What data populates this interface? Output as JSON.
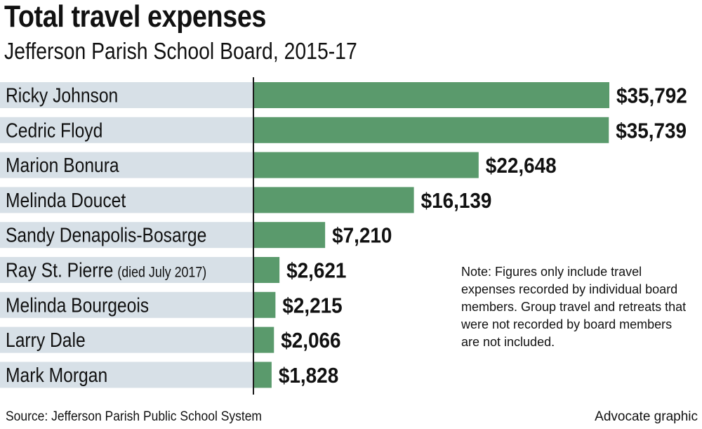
{
  "chart_data": {
    "type": "bar",
    "orientation": "horizontal",
    "title": "Total travel expenses",
    "subtitle": "Jefferson Parish School Board, 2015-17",
    "categories": [
      {
        "name": "Ricky Johnson",
        "note": ""
      },
      {
        "name": "Cedric Floyd",
        "note": ""
      },
      {
        "name": "Marion Bonura",
        "note": ""
      },
      {
        "name": "Melinda Doucet",
        "note": ""
      },
      {
        "name": "Sandy Denapolis-Bosarge",
        "note": ""
      },
      {
        "name": "Ray St. Pierre",
        "note": "(died July 2017)"
      },
      {
        "name": "Melinda Bourgeois",
        "note": ""
      },
      {
        "name": "Larry Dale",
        "note": ""
      },
      {
        "name": "Mark Morgan",
        "note": ""
      }
    ],
    "values": [
      35792,
      35739,
      22648,
      16139,
      7210,
      2621,
      2215,
      2066,
      1828
    ],
    "value_labels": [
      "$35,792",
      "$35,739",
      "$22,648",
      "$16,139",
      "$7,210",
      "$2,621",
      "$2,215",
      "$2,066",
      "$1,828"
    ],
    "xlim": [
      0,
      35792
    ],
    "grid": false,
    "legend": "none",
    "colors": {
      "bar": "#5a9a6c",
      "label_band": "#d7e0e7",
      "axis": "#1a1a1a"
    }
  },
  "note": "Note: Figures only include travel expenses recorded by individual board members. Group travel and retreats that were not recorded by board members are not included.",
  "source": "Source: Jefferson Parish Public School System",
  "credit": "Advocate graphic"
}
